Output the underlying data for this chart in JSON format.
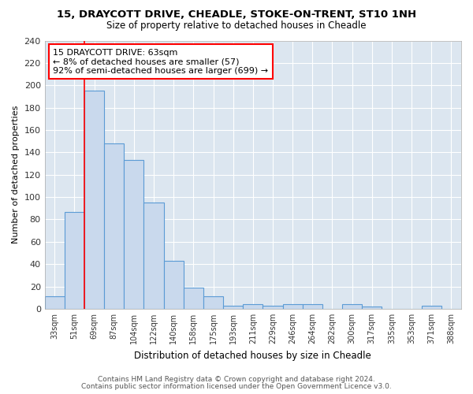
{
  "title1": "15, DRAYCOTT DRIVE, CHEADLE, STOKE-ON-TRENT, ST10 1NH",
  "title2": "Size of property relative to detached houses in Cheadle",
  "xlabel": "Distribution of detached houses by size in Cheadle",
  "ylabel": "Number of detached properties",
  "bin_labels": [
    "33sqm",
    "51sqm",
    "69sqm",
    "87sqm",
    "104sqm",
    "122sqm",
    "140sqm",
    "158sqm",
    "175sqm",
    "193sqm",
    "211sqm",
    "229sqm",
    "246sqm",
    "264sqm",
    "282sqm",
    "300sqm",
    "317sqm",
    "335sqm",
    "353sqm",
    "371sqm",
    "388sqm"
  ],
  "bar_heights": [
    11,
    87,
    195,
    148,
    133,
    95,
    43,
    19,
    11,
    3,
    4,
    3,
    4,
    4,
    0,
    4,
    2,
    0,
    0,
    3,
    0
  ],
  "bar_color": "#c9d9ed",
  "bar_edge_color": "#5b9bd5",
  "red_line_x": 1.5,
  "annotation_text": "15 DRAYCOTT DRIVE: 63sqm\n← 8% of detached houses are smaller (57)\n92% of semi-detached houses are larger (699) →",
  "annotation_box_color": "white",
  "annotation_box_edge": "red",
  "ylim": [
    0,
    240
  ],
  "yticks": [
    0,
    20,
    40,
    60,
    80,
    100,
    120,
    140,
    160,
    180,
    200,
    220,
    240
  ],
  "footer1": "Contains HM Land Registry data © Crown copyright and database right 2024.",
  "footer2": "Contains public sector information licensed under the Open Government Licence v3.0.",
  "fig_background_color": "#ffffff",
  "plot_background_color": "#dce6f0",
  "grid_color": "#ffffff"
}
